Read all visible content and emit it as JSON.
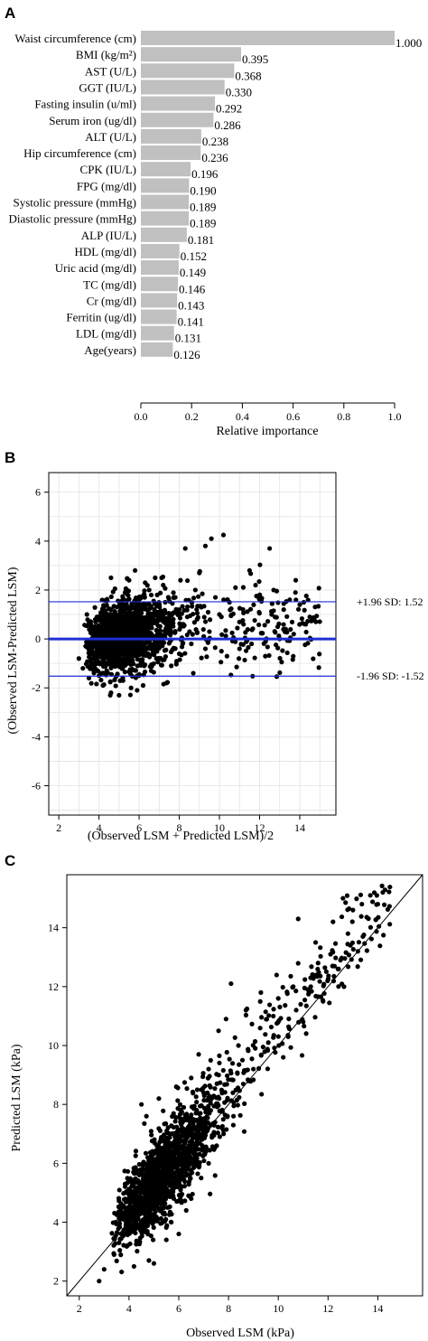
{
  "panels": {
    "a": {
      "letter": "A"
    },
    "b": {
      "letter": "B"
    },
    "c": {
      "letter": "C"
    }
  },
  "colors": {
    "bar": "#c0c0c0",
    "point": "#000000",
    "line_blue": "#1f2fd6",
    "grid": "#e3e3e3"
  },
  "chart_data": [
    {
      "type": "bar",
      "orientation": "horizontal",
      "categories": [
        "Waist circumference (cm)",
        "BMI (kg/m²)",
        "AST (U/L)",
        "GGT (IU/L)",
        "Fasting insulin (u/ml)",
        "Serum iron (ug/dl)",
        "ALT (U/L)",
        "Hip circumference (cm)",
        "CPK (IU/L)",
        "FPG (mg/dl)",
        "Systolic pressure (mmHg)",
        "Diastolic pressure (mmHg)",
        "ALP (IU/L)",
        "HDL (mg/dl)",
        "Uric acid (mg/dl)",
        "TC (mg/dl)",
        "Cr (mg/dl)",
        "Ferritin (ug/dl)",
        "LDL (mg/dl)",
        "Age(years)"
      ],
      "values": [
        1.0,
        0.395,
        0.368,
        0.33,
        0.292,
        0.286,
        0.238,
        0.236,
        0.196,
        0.19,
        0.189,
        0.189,
        0.181,
        0.152,
        0.149,
        0.146,
        0.143,
        0.141,
        0.131,
        0.126
      ],
      "value_labels": [
        "1.000",
        "0.395",
        "0.368",
        "0.330",
        "0.292",
        "0.286",
        "0.238",
        "0.236",
        "0.196",
        "0.190",
        "0.189",
        "0.189",
        "0.181",
        "0.152",
        "0.149",
        "0.146",
        "0.143",
        "0.141",
        "0.131",
        "0.126"
      ],
      "xlabel": "Relative importance",
      "xlim": [
        0,
        1
      ],
      "xticks": [
        "0.0",
        "0.2",
        "0.4",
        "0.6",
        "0.8",
        "1.0"
      ]
    },
    {
      "type": "scatter",
      "title": "",
      "xlabel": "(Observed LSM + Predicted LSM)/2",
      "ylabel": "(Observed LSM-Predicted LSM)",
      "xlim": [
        1.5,
        15.8
      ],
      "ylim": [
        -7.2,
        6.8
      ],
      "xticks": [
        "2",
        "4",
        "6",
        "8",
        "10",
        "12",
        "14"
      ],
      "yticks": [
        "-6",
        "-4",
        "-2",
        "0",
        "2",
        "4",
        "6"
      ],
      "grid": true,
      "hlines": [
        {
          "y": 1.52,
          "label": "+1.96 SD: 1.52"
        },
        {
          "y": 0,
          "label": ""
        },
        {
          "y": -1.52,
          "label": "-1.96 SD: -1.52"
        }
      ],
      "points": [
        [
          4.6,
          2.5
        ],
        [
          5.8,
          2.8
        ],
        [
          8.3,
          3.7
        ],
        [
          9.3,
          3.8
        ],
        [
          9.6,
          4.1
        ],
        [
          10.2,
          4.25
        ],
        [
          12.5,
          3.7
        ],
        [
          6.8,
          2.5
        ],
        [
          7.2,
          2.2
        ],
        [
          5.5,
          2.4
        ],
        [
          6.5,
          2.0
        ],
        [
          9.0,
          2.7
        ],
        [
          11.5,
          2.8
        ],
        [
          13.8,
          2.4
        ],
        [
          11.8,
          2.2
        ],
        [
          12.7,
          2.0
        ],
        [
          14.2,
          1.5
        ],
        [
          14.5,
          0.9
        ],
        [
          14.8,
          0.7
        ],
        [
          13.2,
          1.2
        ],
        [
          3.9,
          0.9
        ],
        [
          3.4,
          1.0
        ],
        [
          6.3,
          2.3
        ],
        [
          7.8,
          1.7
        ],
        [
          8.8,
          2.0
        ],
        [
          10.5,
          1.5
        ],
        [
          12.0,
          1.6
        ],
        [
          13.5,
          1.6
        ],
        [
          14.0,
          1.4
        ],
        [
          12.9,
          0.5
        ],
        [
          11.2,
          0.6
        ],
        [
          10.0,
          1.0
        ],
        [
          9.5,
          0.3
        ],
        [
          8.2,
          0.6
        ],
        [
          7.5,
          0.9
        ],
        [
          8.6,
          -0.2
        ],
        [
          9.3,
          -0.4
        ],
        [
          10.1,
          -0.5
        ],
        [
          11.0,
          -0.4
        ],
        [
          11.6,
          -0.2
        ],
        [
          12.3,
          -0.1
        ],
        [
          13.0,
          0.0
        ],
        [
          13.7,
          0.2
        ],
        [
          14.3,
          0.6
        ],
        [
          7.0,
          -0.8
        ],
        [
          7.6,
          -1.1
        ],
        [
          6.6,
          -1.3
        ],
        [
          5.2,
          -1.7
        ],
        [
          4.2,
          -1.9
        ],
        [
          4.6,
          -2.2
        ],
        [
          5.0,
          -2.3
        ],
        [
          5.6,
          -2.0
        ],
        [
          5.9,
          -2.1
        ],
        [
          6.2,
          -1.9
        ],
        [
          3.5,
          -1.6
        ],
        [
          3.0,
          -0.8
        ],
        [
          3.2,
          -1.2
        ],
        [
          4.0,
          -1.5
        ],
        [
          3.8,
          -1.0
        ],
        [
          6.0,
          -1.5
        ],
        [
          9.8,
          1.7
        ],
        [
          10.8,
          2.1
        ],
        [
          12.6,
          1.0
        ],
        [
          13.3,
          0.4
        ],
        [
          8.0,
          1.2
        ],
        [
          8.4,
          0.9
        ],
        [
          9.1,
          1.3
        ],
        [
          7.3,
          1.5
        ],
        [
          6.9,
          1.8
        ],
        [
          5.3,
          1.9
        ]
      ]
    },
    {
      "type": "scatter",
      "title": "",
      "xlabel": "Observed LSM (kPa)",
      "ylabel": "Predicted LSM (kPa)",
      "xlim": [
        1.5,
        15.8
      ],
      "ylim": [
        1.5,
        15.8
      ],
      "xticks": [
        "2",
        "4",
        "6",
        "8",
        "10",
        "12",
        "14"
      ],
      "yticks": [
        "2",
        "4",
        "6",
        "8",
        "10",
        "12",
        "14"
      ],
      "identity_line": true,
      "points": [
        [
          2.8,
          2.0
        ],
        [
          3.0,
          2.4
        ],
        [
          14.2,
          15.2
        ],
        [
          13.7,
          15.1
        ],
        [
          12.6,
          15.0
        ],
        [
          13.0,
          14.6
        ],
        [
          14.0,
          14.8
        ],
        [
          12.2,
          14.2
        ],
        [
          11.5,
          13.5
        ],
        [
          10.8,
          14.3
        ],
        [
          12.8,
          13.8
        ],
        [
          12.5,
          12.9
        ],
        [
          13.2,
          13.2
        ],
        [
          12.4,
          12.6
        ],
        [
          11.3,
          12.3
        ],
        [
          10.6,
          12.0
        ],
        [
          10.0,
          11.6
        ],
        [
          9.3,
          11.8
        ],
        [
          8.7,
          11.2
        ],
        [
          8.1,
          12.1
        ],
        [
          7.9,
          10.9
        ],
        [
          7.6,
          10.5
        ],
        [
          8.4,
          10.0
        ],
        [
          9.6,
          10.1
        ],
        [
          10.2,
          9.6
        ],
        [
          11.0,
          10.8
        ],
        [
          11.8,
          11.5
        ],
        [
          6.8,
          9.7
        ],
        [
          6.5,
          8.9
        ],
        [
          7.2,
          9.2
        ],
        [
          9.0,
          9.2
        ],
        [
          10.4,
          10.3
        ],
        [
          5.9,
          8.6
        ],
        [
          5.2,
          8.2
        ],
        [
          4.7,
          7.6
        ],
        [
          4.5,
          8.0
        ],
        [
          6.2,
          7.9
        ],
        [
          7.0,
          8.4
        ],
        [
          8.8,
          8.8
        ],
        [
          12.9,
          13.4
        ],
        [
          13.4,
          13.7
        ],
        [
          9.8,
          11.0
        ],
        [
          10.9,
          11.4
        ],
        [
          11.6,
          12.8
        ],
        [
          12.1,
          13.1
        ],
        [
          5.5,
          3.4
        ],
        [
          6.0,
          3.6
        ],
        [
          6.3,
          4.4
        ],
        [
          4.8,
          2.7
        ],
        [
          4.2,
          2.5
        ],
        [
          5.0,
          2.6
        ],
        [
          3.4,
          2.9
        ],
        [
          3.6,
          3.3
        ],
        [
          7.2,
          6.0
        ],
        [
          7.8,
          7.0
        ],
        [
          8.2,
          7.6
        ],
        [
          6.7,
          6.6
        ],
        [
          6.9,
          5.5
        ],
        [
          5.7,
          4.0
        ],
        [
          6.5,
          4.8
        ]
      ]
    }
  ]
}
